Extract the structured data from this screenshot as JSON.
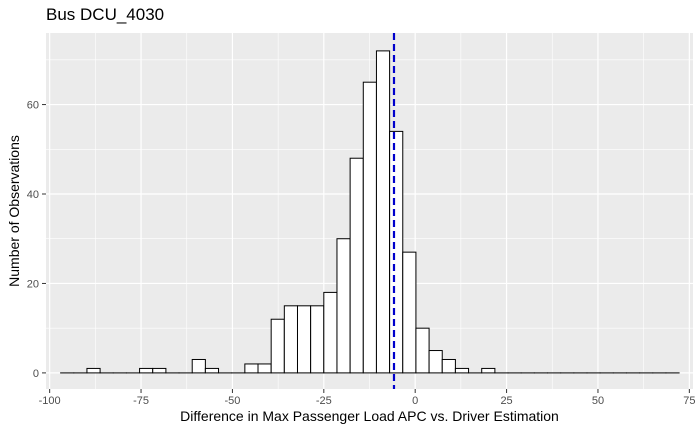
{
  "chart_data": {
    "type": "bar",
    "title": "Bus DCU_4030",
    "xlabel": "Difference in Max Passenger Load APC vs. Driver Estimation",
    "ylabel": "Number of Observations",
    "xlim": [
      -101,
      76
    ],
    "ylim": [
      -3.6,
      76
    ],
    "x_ticks": [
      -100,
      -75,
      -50,
      -25,
      0,
      25,
      50,
      75
    ],
    "x_tick_labels": [
      "-100",
      "-75",
      "-50",
      "-25",
      "0",
      "25",
      "50",
      "75"
    ],
    "y_ticks": [
      0,
      20,
      40,
      60
    ],
    "y_tick_labels": [
      "0",
      "20",
      "40",
      "60"
    ],
    "bin_width": 3.6,
    "bins": [
      {
        "x": -95.2,
        "count": 0
      },
      {
        "x": -91.6,
        "count": 0
      },
      {
        "x": -88.0,
        "count": 1
      },
      {
        "x": -84.4,
        "count": 0
      },
      {
        "x": -80.8,
        "count": 0
      },
      {
        "x": -77.2,
        "count": 0
      },
      {
        "x": -73.6,
        "count": 1
      },
      {
        "x": -70.0,
        "count": 1
      },
      {
        "x": -66.4,
        "count": 0
      },
      {
        "x": -62.8,
        "count": 0
      },
      {
        "x": -59.2,
        "count": 3
      },
      {
        "x": -55.6,
        "count": 1
      },
      {
        "x": -52.0,
        "count": 0
      },
      {
        "x": -48.4,
        "count": 0
      },
      {
        "x": -44.8,
        "count": 2
      },
      {
        "x": -41.2,
        "count": 2
      },
      {
        "x": -37.6,
        "count": 12
      },
      {
        "x": -34.0,
        "count": 15
      },
      {
        "x": -30.4,
        "count": 15
      },
      {
        "x": -26.8,
        "count": 15
      },
      {
        "x": -23.2,
        "count": 18
      },
      {
        "x": -19.6,
        "count": 30
      },
      {
        "x": -16.0,
        "count": 48
      },
      {
        "x": -12.4,
        "count": 65
      },
      {
        "x": -8.8,
        "count": 72
      },
      {
        "x": -5.2,
        "count": 54
      },
      {
        "x": -1.6,
        "count": 27
      },
      {
        "x": 2.0,
        "count": 10
      },
      {
        "x": 5.6,
        "count": 5
      },
      {
        "x": 9.2,
        "count": 3
      },
      {
        "x": 12.8,
        "count": 1
      },
      {
        "x": 16.4,
        "count": 0
      },
      {
        "x": 20.0,
        "count": 1
      },
      {
        "x": 23.6,
        "count": 0
      },
      {
        "x": 27.2,
        "count": 0
      },
      {
        "x": 30.8,
        "count": 0
      },
      {
        "x": 34.4,
        "count": 0
      },
      {
        "x": 38.0,
        "count": 0
      },
      {
        "x": 41.6,
        "count": 0
      },
      {
        "x": 45.2,
        "count": 0
      },
      {
        "x": 48.8,
        "count": 0
      },
      {
        "x": 52.4,
        "count": 0
      },
      {
        "x": 56.0,
        "count": 0
      },
      {
        "x": 59.6,
        "count": 0
      },
      {
        "x": 63.2,
        "count": 0
      },
      {
        "x": 66.8,
        "count": 0
      },
      {
        "x": 70.4,
        "count": 0
      }
    ],
    "mean_line": {
      "x": -5.8,
      "color": "#0000cc",
      "style": "dashed"
    },
    "colors": {
      "panel_background": "#ebebeb",
      "grid_major": "#ffffff",
      "bar_fill": "#ffffff",
      "bar_outline": "#000000"
    }
  }
}
